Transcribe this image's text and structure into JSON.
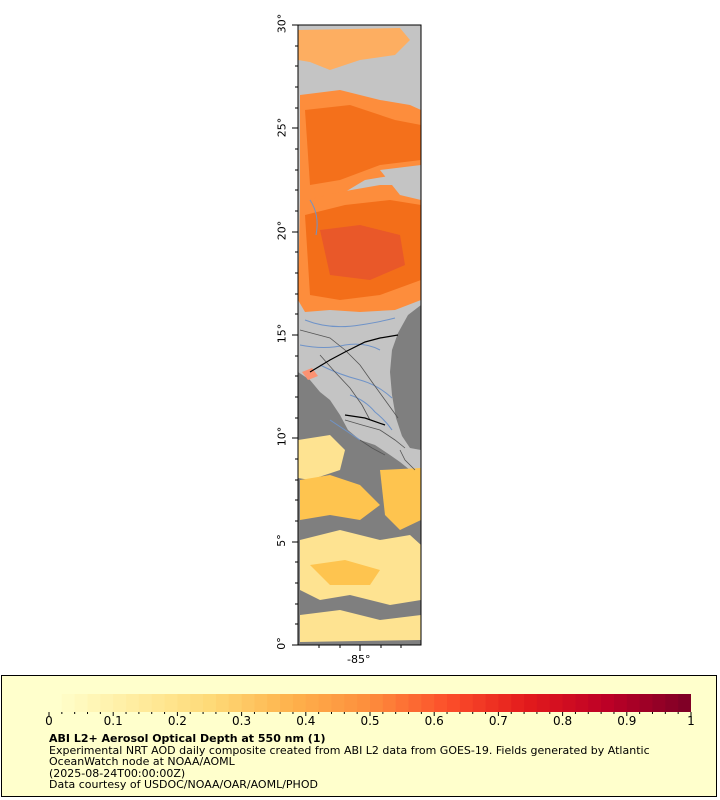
{
  "map": {
    "lat_ticks": [
      "0°",
      "5°",
      "10°",
      "15°",
      "20°",
      "25°",
      "30°"
    ],
    "lon_ticks": [
      "-85°"
    ],
    "colors": {
      "land": "#c4c4c4",
      "no_data": "#7f7f7f",
      "border": "#000000",
      "rivers": "#6f93c8"
    }
  },
  "legend": {
    "colorbar_labels": [
      "0",
      "0.1",
      "0.2",
      "0.3",
      "0.4",
      "0.5",
      "0.6",
      "0.7",
      "0.8",
      "0.9",
      "1"
    ],
    "title": "ABI L2+ Aerosol Optical Depth at 550 nm (1)",
    "line1": "Experimental NRT AOD daily composite created from ABI L2 data from GOES-19. Fields generated by Atlantic",
    "line2": "OceanWatch node at NOAA/AOML",
    "line3": "(2025-08-24T00:00:00Z)",
    "line4": "Data courtesy of USDOC/NOAA/OAR/AOML/PHOD",
    "colormap": [
      "#ffffcc",
      "#ffeda0",
      "#fed976",
      "#feb24c",
      "#fd8d3c",
      "#fc4e2a",
      "#e31a1c",
      "#bd0026",
      "#800026"
    ]
  }
}
